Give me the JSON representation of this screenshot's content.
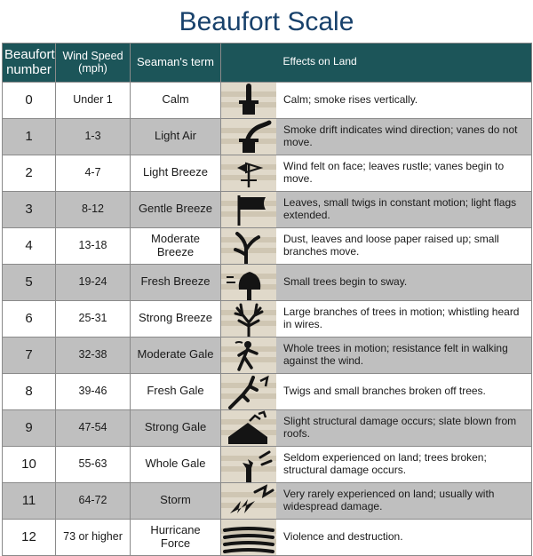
{
  "title": "Beaufort Scale",
  "title_color": "#18416b",
  "header_bg": "#1c5559",
  "header_text_color": "#ffffff",
  "row_alt_bg": "#bfbfbf",
  "row_bg": "#ffffff",
  "border_color": "#8a8a8a",
  "text_color": "#1a1a1a",
  "icon_bg_stripe1": "#e0d9ca",
  "icon_bg_stripe2": "#cfc6b3",
  "icon_fg": "#141414",
  "columns": [
    {
      "key": "number",
      "label": "Beaufort\nnumber",
      "class": "col-num"
    },
    {
      "key": "speed",
      "label": "Wind Speed\n(mph)",
      "class": "col-speed"
    },
    {
      "key": "term",
      "label": "Seaman's term",
      "class": "col-term"
    },
    {
      "key": "icon",
      "label": "",
      "class": "col-icon"
    },
    {
      "key": "effect",
      "label": "Effects on Land",
      "class": "col-effect"
    }
  ],
  "rows": [
    {
      "number": "0",
      "speed": "Under 1",
      "term": "Calm",
      "effect": "Calm; smoke rises vertically.",
      "icon": "chimney-calm"
    },
    {
      "number": "1",
      "speed": "1-3",
      "term": "Light Air",
      "effect": "Smoke drift indicates wind direction; vanes do not move.",
      "icon": "chimney-drift"
    },
    {
      "number": "2",
      "speed": "4-7",
      "term": "Light Breeze",
      "effect": "Wind felt on face; leaves rustle; vanes begin to move.",
      "icon": "weathervane"
    },
    {
      "number": "3",
      "speed": "8-12",
      "term": "Gentle Breeze",
      "effect": "Leaves, small twigs in constant motion; light flags extended.",
      "icon": "flag"
    },
    {
      "number": "4",
      "speed": "13-18",
      "term": "Moderate Breeze",
      "effect": "Dust, leaves and loose paper raised up; small branches move.",
      "icon": "tree-sway"
    },
    {
      "number": "5",
      "speed": "19-24",
      "term": "Fresh Breeze",
      "effect": "Small trees begin to sway.",
      "icon": "tree-small"
    },
    {
      "number": "6",
      "speed": "25-31",
      "term": "Strong Breeze",
      "effect": "Large branches of trees in motion; whistling heard in wires.",
      "icon": "tree-bare"
    },
    {
      "number": "7",
      "speed": "32-38",
      "term": "Moderate Gale",
      "effect": "Whole trees in motion; resistance felt in walking against the wind.",
      "icon": "walker"
    },
    {
      "number": "8",
      "speed": "39-46",
      "term": "Fresh Gale",
      "effect": "Twigs and small branches broken off trees.",
      "icon": "broken-branch"
    },
    {
      "number": "9",
      "speed": "47-54",
      "term": "Strong Gale",
      "effect": "Slight structural damage occurs; slate blown from roofs.",
      "icon": "roof-damage"
    },
    {
      "number": "10",
      "speed": "55-63",
      "term": "Whole Gale",
      "effect": "Seldom experienced on land; trees broken; structural damage occurs.",
      "icon": "tree-broken"
    },
    {
      "number": "11",
      "speed": "64-72",
      "term": "Storm",
      "effect": "Very rarely experienced on land; usually with widespread damage.",
      "icon": "storm"
    },
    {
      "number": "12",
      "speed": "73 or higher",
      "term": "Hurricane Force",
      "effect": "Violence and destruction.",
      "icon": "hurricane"
    }
  ]
}
